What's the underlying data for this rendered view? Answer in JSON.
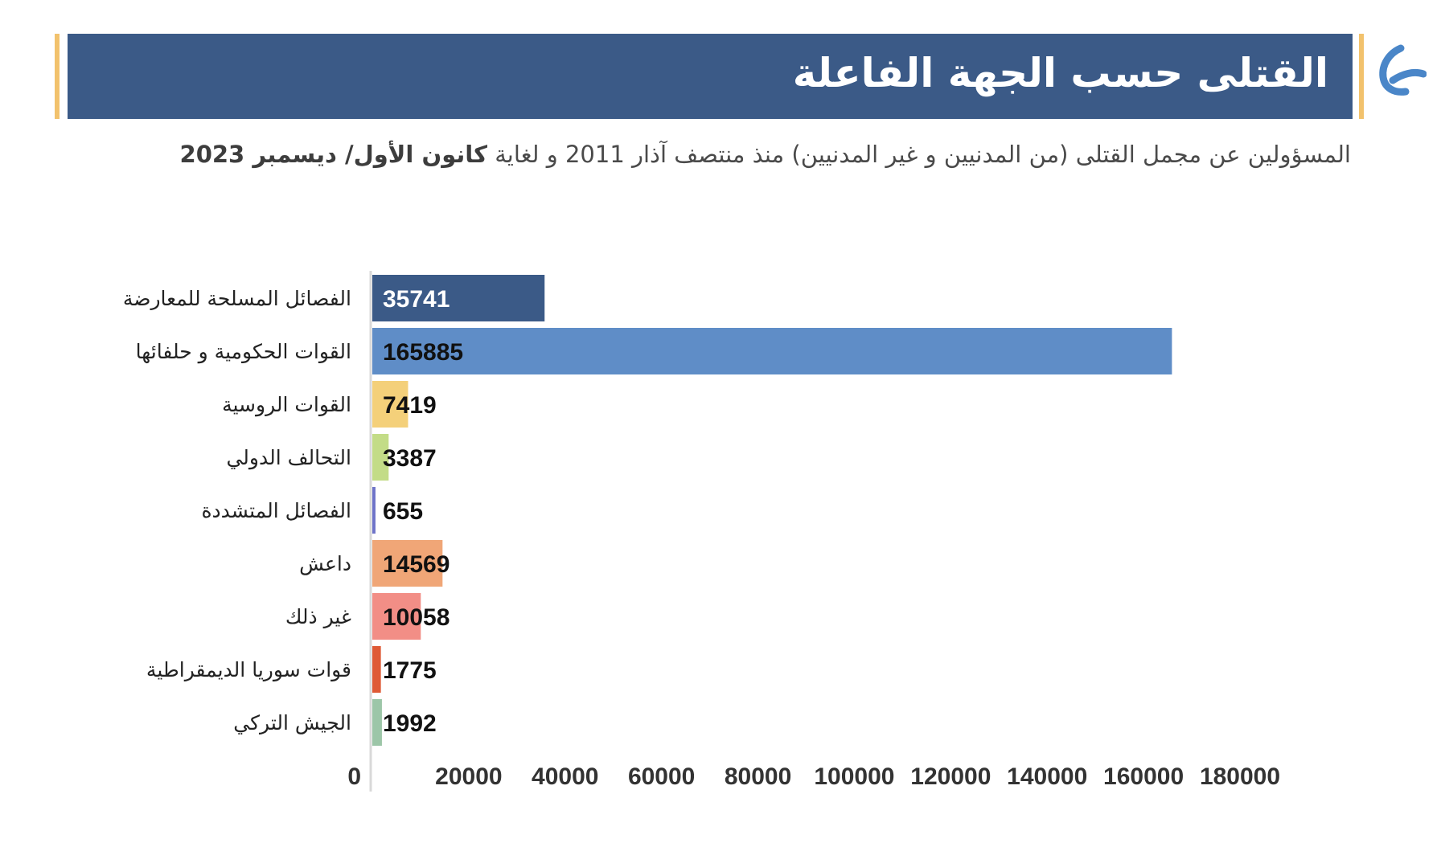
{
  "header": {
    "title": "القتلى حسب الجهة الفاعلة"
  },
  "subtitle": {
    "text": "المسؤولين عن مجمل القتلى (من المدنيين و غير المدنيين) منذ منتصف آذار 2011 و لغاية ",
    "date_bold": "كانون الأول/ ديسمبر 2023"
  },
  "logo": {
    "icon": "organization-logo-icon",
    "color": "#4a86c8"
  },
  "colors": {
    "header_bg": "#3b5a87",
    "accent": "#f2c26d"
  },
  "chart_data": {
    "type": "bar",
    "orientation": "horizontal",
    "title": "",
    "xlabel": "",
    "ylabel": "",
    "categories": [
      "الفصائل المسلحة للمعارضة",
      "القوات الحكومية و حلفائها",
      "القوات الروسية",
      "التحالف الدولي",
      "الفصائل المتشددة",
      "داعش",
      "غير ذلك",
      "قوات سوريا الديمقراطية",
      "الجيش التركي"
    ],
    "values": [
      35741,
      165885,
      7419,
      3387,
      655,
      14569,
      10058,
      1775,
      1992
    ],
    "colors": [
      "#3b5a87",
      "#5f8dc7",
      "#f4d07a",
      "#c3dc87",
      "#6e73c8",
      "#f0a677",
      "#f28e86",
      "#df5a36",
      "#9cc6a8"
    ],
    "value_label_colors": [
      "#ffffff",
      "#111111",
      "#111111",
      "#111111",
      "#111111",
      "#111111",
      "#111111",
      "#111111",
      "#111111"
    ],
    "xlim": [
      0,
      180000
    ],
    "xticks": [
      0,
      20000,
      40000,
      60000,
      80000,
      100000,
      120000,
      140000,
      160000,
      180000
    ],
    "xtick_labels": [
      "0",
      "20000",
      "40000",
      "60000",
      "80000",
      "100000",
      "120000",
      "140000",
      "160000",
      "180000"
    ],
    "grid": false,
    "legend": "none"
  }
}
